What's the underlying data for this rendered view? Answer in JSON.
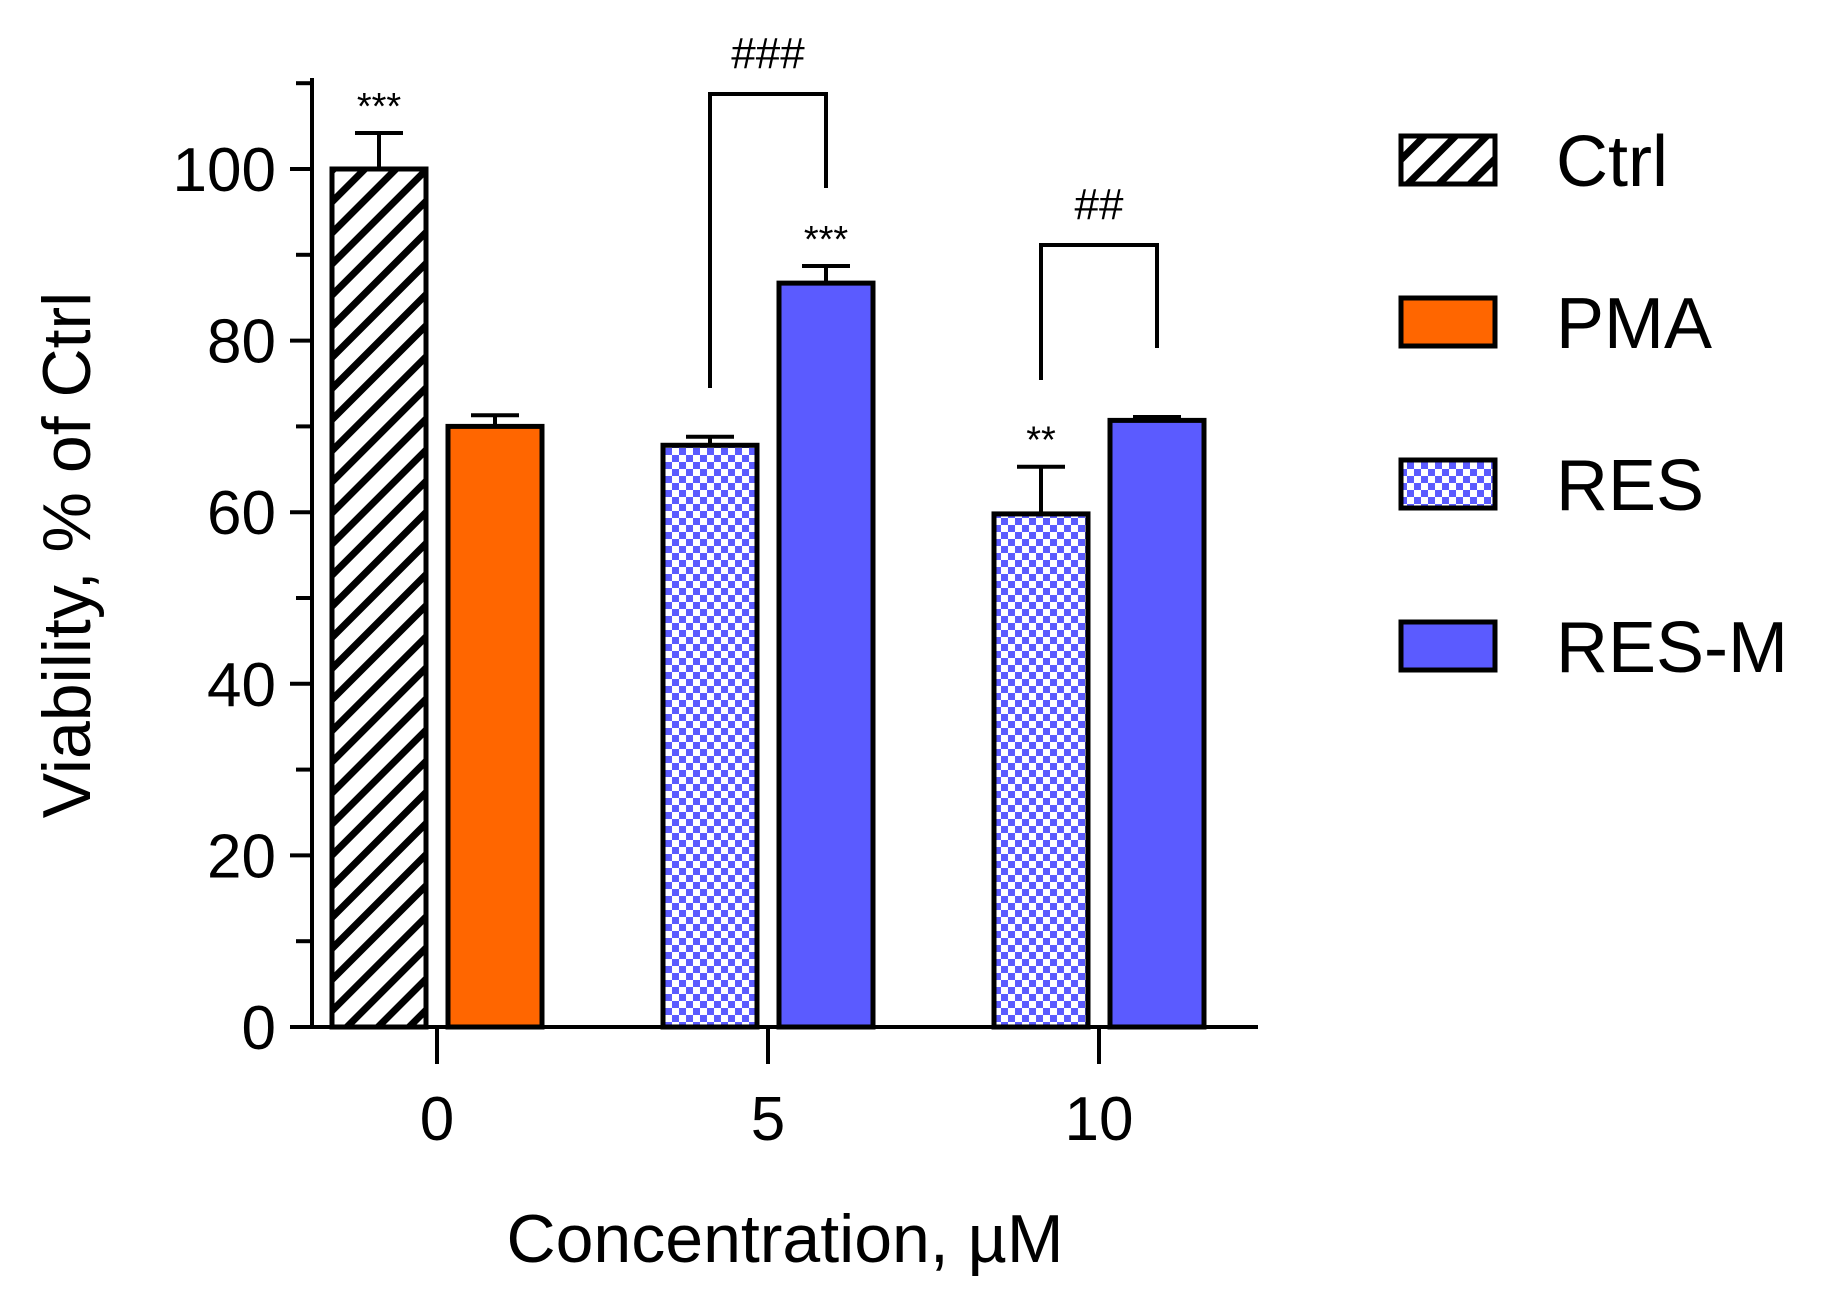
{
  "chart_data": {
    "type": "bar",
    "title": "",
    "xlabel": "Concentration, µM",
    "ylabel": "Viability, % of Ctrl",
    "ylim": [
      0,
      110
    ],
    "yticks": [
      0,
      20,
      40,
      60,
      80,
      100
    ],
    "ytick_labels": [
      "0",
      "20",
      "40",
      "60",
      "80",
      "100"
    ],
    "categories": [
      "0",
      "5",
      "10"
    ],
    "series": [
      {
        "name": "Ctrl",
        "fill": "hatch",
        "color": "#000000",
        "values": [
          100,
          null,
          null
        ],
        "errors": [
          4.2,
          null,
          null
        ]
      },
      {
        "name": "PMA",
        "fill": "solid",
        "color": "#FF6600",
        "values": [
          70,
          null,
          null
        ],
        "errors": [
          1.3,
          null,
          null
        ]
      },
      {
        "name": "RES",
        "fill": "checker",
        "color": "#5B5BFF",
        "values": [
          null,
          67.8,
          59.8
        ],
        "errors": [
          null,
          1.0,
          5.5
        ]
      },
      {
        "name": "RES-M",
        "fill": "solid",
        "color": "#5B5BFF",
        "values": [
          null,
          86.7,
          70.7
        ],
        "errors": [
          null,
          2.0,
          0.4
        ]
      }
    ],
    "significance": [
      {
        "category": "0",
        "series": "Ctrl",
        "label": "***"
      },
      {
        "category": "5",
        "series": "RES-M",
        "label": "***"
      },
      {
        "category": "10",
        "series": "RES",
        "label": "**"
      }
    ],
    "comparisons": [
      {
        "category": "5",
        "from": "RES",
        "to": "RES-M",
        "label": "###"
      },
      {
        "category": "10",
        "from": "RES",
        "to": "RES-M",
        "label": "##"
      }
    ],
    "legend": {
      "placement": "right",
      "entries": [
        {
          "label": "Ctrl",
          "fill": "hatch"
        },
        {
          "label": "PMA",
          "fill": "solid",
          "color": "#FF6600"
        },
        {
          "label": "RES",
          "fill": "checker",
          "color": "#5B5BFF"
        },
        {
          "label": "RES-M",
          "fill": "solid",
          "color": "#5B5BFF"
        }
      ]
    }
  }
}
